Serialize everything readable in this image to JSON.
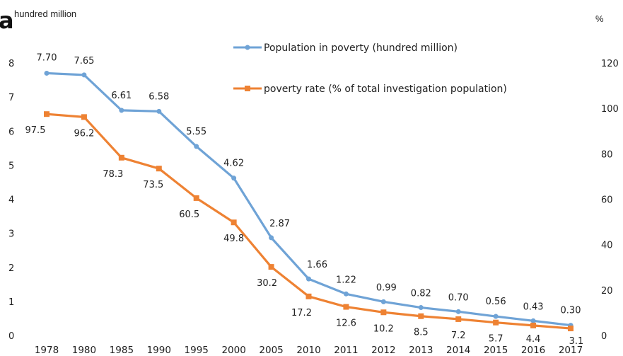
{
  "panel_letter": "a",
  "chart_data": {
    "type": "line",
    "categories": [
      "1978",
      "1980",
      "1985",
      "1990",
      "1995",
      "2000",
      "2005",
      "2010",
      "2011",
      "2012",
      "2013",
      "2014",
      "2015",
      "2016",
      "2017"
    ],
    "left_axis": {
      "unit": "hundred million",
      "ylim": [
        0,
        8
      ],
      "ticks": [
        "0",
        "1",
        "2",
        "3",
        "4",
        "5",
        "6",
        "7",
        "8"
      ]
    },
    "right_axis": {
      "unit": "%",
      "ylim": [
        0,
        120
      ],
      "ticks": [
        "0",
        "20",
        "40",
        "60",
        "80",
        "100",
        "120"
      ]
    },
    "grid": false,
    "legend_position": "top-right",
    "series": [
      {
        "name": "Population in poverty (hundred million)",
        "axis": "left",
        "color": "#6FA3D6",
        "values": [
          7.7,
          7.65,
          6.61,
          6.58,
          5.55,
          4.62,
          2.87,
          1.66,
          1.22,
          0.99,
          0.82,
          0.7,
          0.56,
          0.43,
          0.3
        ],
        "labels": [
          "7.70",
          "7.65",
          "6.61",
          "6.58",
          "5.55",
          "4.62",
          "2.87",
          "1.66",
          "1.22",
          "0.99",
          "0.82",
          "0.70",
          "0.56",
          "0.43",
          "0.30"
        ]
      },
      {
        "name": "poverty rate (% of total investigation population)",
        "axis": "right",
        "color": "#EE8233",
        "values": [
          97.5,
          96.2,
          78.3,
          73.5,
          60.5,
          49.8,
          30.2,
          17.2,
          12.6,
          10.2,
          8.5,
          7.2,
          5.7,
          4.4,
          3.1
        ],
        "labels": [
          "97.5",
          "96.2",
          "78.3",
          "73.5",
          "60.5",
          "49.8",
          "30.2",
          "17.2",
          "12.6",
          "10.2",
          "8.5",
          "7.2",
          "5.7",
          "4.4",
          "3.1"
        ]
      }
    ]
  }
}
